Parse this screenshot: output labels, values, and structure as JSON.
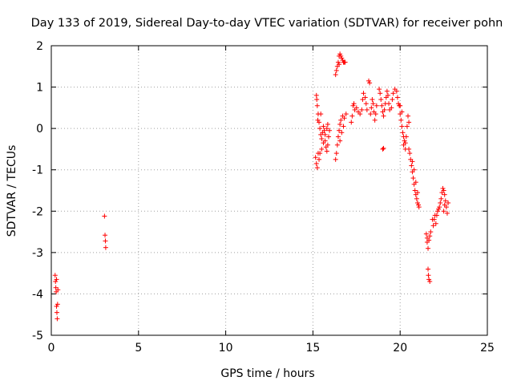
{
  "chart_data": {
    "type": "scatter",
    "title": "Day 133 of 2019, Sidereal Day-to-day VTEC variation (SDTVAR) for receiver pohn",
    "xlabel": "GPS time / hours",
    "ylabel": "SDTVAR / TECUs",
    "xlim": [
      0,
      25
    ],
    "ylim": [
      -5,
      2
    ],
    "x_ticks": [
      0,
      5,
      10,
      15,
      20,
      25
    ],
    "y_ticks": [
      -5,
      -4,
      -3,
      -2,
      -1,
      0,
      1,
      2
    ],
    "x_tick_labels": [
      "0",
      "5",
      "10",
      "15",
      "20",
      "25"
    ],
    "y_tick_labels": [
      "-5",
      "-4",
      "-3",
      "-2",
      "-1",
      "0",
      "1",
      "2"
    ],
    "grid": true,
    "marker": "+",
    "series": [
      {
        "name": "SDTVAR",
        "color": "#ff0000",
        "points": [
          [
            0.22,
            -3.55
          ],
          [
            0.24,
            -3.7
          ],
          [
            0.26,
            -3.85
          ],
          [
            0.28,
            -3.95
          ],
          [
            0.3,
            -4.3
          ],
          [
            0.32,
            -4.45
          ],
          [
            0.34,
            -4.6
          ],
          [
            0.36,
            -4.25
          ],
          [
            0.38,
            -3.9
          ],
          [
            0.3,
            -3.65
          ],
          [
            3.05,
            -2.12
          ],
          [
            3.08,
            -2.58
          ],
          [
            3.1,
            -2.72
          ],
          [
            3.12,
            -2.88
          ],
          [
            15.15,
            -0.7
          ],
          [
            15.2,
            -0.85
          ],
          [
            15.25,
            -0.95
          ],
          [
            15.3,
            -0.6
          ],
          [
            15.2,
            0.8
          ],
          [
            15.22,
            0.7
          ],
          [
            15.25,
            0.55
          ],
          [
            15.3,
            0.35
          ],
          [
            15.35,
            0.15
          ],
          [
            15.4,
            0.0
          ],
          [
            15.45,
            -0.15
          ],
          [
            15.5,
            -0.25
          ],
          [
            15.55,
            -0.1
          ],
          [
            15.6,
            0.05
          ],
          [
            15.65,
            -0.05
          ],
          [
            15.7,
            -0.3
          ],
          [
            15.75,
            -0.45
          ],
          [
            15.8,
            -0.55
          ],
          [
            15.85,
            -0.4
          ],
          [
            15.9,
            -0.2
          ],
          [
            15.95,
            -0.05
          ],
          [
            15.35,
            -0.75
          ],
          [
            15.4,
            -0.6
          ],
          [
            15.5,
            -0.5
          ],
          [
            15.6,
            -0.35
          ],
          [
            15.7,
            -0.15
          ],
          [
            15.8,
            0.0
          ],
          [
            15.85,
            0.1
          ],
          [
            15.28,
            0.2
          ],
          [
            15.45,
            0.35
          ],
          [
            16.3,
            -0.75
          ],
          [
            16.35,
            -0.6
          ],
          [
            16.4,
            -0.4
          ],
          [
            16.45,
            -0.2
          ],
          [
            16.5,
            -0.05
          ],
          [
            16.55,
            0.1
          ],
          [
            16.6,
            0.2
          ],
          [
            16.7,
            0.3
          ],
          [
            16.8,
            0.25
          ],
          [
            16.9,
            0.35
          ],
          [
            16.55,
            -0.3
          ],
          [
            16.65,
            -0.1
          ],
          [
            16.75,
            0.05
          ],
          [
            16.3,
            1.3
          ],
          [
            16.35,
            1.4
          ],
          [
            16.4,
            1.5
          ],
          [
            16.45,
            1.6
          ],
          [
            16.5,
            1.75
          ],
          [
            16.55,
            1.8
          ],
          [
            16.6,
            1.75
          ],
          [
            16.65,
            1.7
          ],
          [
            16.7,
            1.65
          ],
          [
            16.75,
            1.6
          ],
          [
            16.8,
            1.6
          ],
          [
            16.85,
            1.6
          ],
          [
            16.5,
            1.55
          ],
          [
            17.3,
            0.55
          ],
          [
            17.35,
            0.6
          ],
          [
            17.4,
            0.45
          ],
          [
            17.5,
            0.5
          ],
          [
            17.6,
            0.4
          ],
          [
            17.7,
            0.35
          ],
          [
            17.8,
            0.45
          ],
          [
            17.85,
            0.7
          ],
          [
            17.9,
            0.85
          ],
          [
            18.0,
            0.75
          ],
          [
            18.05,
            0.6
          ],
          [
            18.1,
            0.45
          ],
          [
            17.25,
            0.3
          ],
          [
            17.2,
            0.15
          ],
          [
            18.2,
            1.15
          ],
          [
            18.25,
            1.1
          ],
          [
            18.3,
            0.35
          ],
          [
            18.35,
            0.5
          ],
          [
            18.4,
            0.7
          ],
          [
            18.45,
            0.6
          ],
          [
            18.5,
            0.4
          ],
          [
            18.55,
            0.2
          ],
          [
            18.6,
            0.35
          ],
          [
            18.65,
            0.55
          ],
          [
            18.8,
            0.95
          ],
          [
            18.85,
            0.85
          ],
          [
            18.9,
            0.7
          ],
          [
            18.95,
            0.55
          ],
          [
            19.0,
            0.4
          ],
          [
            19.05,
            0.3
          ],
          [
            19.1,
            0.45
          ],
          [
            19.15,
            0.6
          ],
          [
            19.2,
            0.75
          ],
          [
            19.25,
            0.9
          ],
          [
            19.3,
            0.8
          ],
          [
            19.35,
            0.6
          ],
          [
            19.4,
            0.45
          ],
          [
            19.5,
            0.5
          ],
          [
            19.55,
            0.7
          ],
          [
            19.6,
            0.85
          ],
          [
            19.7,
            0.95
          ],
          [
            19.8,
            0.9
          ],
          [
            19.85,
            0.75
          ],
          [
            19.9,
            0.6
          ],
          [
            19.0,
            -0.5
          ],
          [
            19.05,
            -0.48
          ],
          [
            19.95,
            0.55
          ],
          [
            20.0,
            0.35
          ],
          [
            20.05,
            0.2
          ],
          [
            20.1,
            0.05
          ],
          [
            20.15,
            -0.1
          ],
          [
            20.2,
            -0.2
          ],
          [
            20.25,
            -0.3
          ],
          [
            20.3,
            -0.35
          ],
          [
            20.35,
            -0.2
          ],
          [
            20.4,
            0.05
          ],
          [
            20.45,
            0.3
          ],
          [
            20.5,
            0.15
          ],
          [
            20.0,
            0.55
          ],
          [
            20.1,
            0.4
          ],
          [
            20.2,
            -0.4
          ],
          [
            20.3,
            -0.5
          ],
          [
            20.5,
            -0.5
          ],
          [
            20.55,
            -0.6
          ],
          [
            20.6,
            -0.75
          ],
          [
            20.65,
            -0.9
          ],
          [
            20.7,
            -1.05
          ],
          [
            20.75,
            -1.2
          ],
          [
            20.8,
            -1.35
          ],
          [
            20.85,
            -1.5
          ],
          [
            20.9,
            -1.6
          ],
          [
            20.95,
            -1.7
          ],
          [
            21.0,
            -1.8
          ],
          [
            21.05,
            -1.85
          ],
          [
            21.08,
            -1.9
          ],
          [
            20.7,
            -0.8
          ],
          [
            20.8,
            -1.0
          ],
          [
            20.9,
            -1.3
          ],
          [
            21.0,
            -1.55
          ],
          [
            21.5,
            -2.55
          ],
          [
            21.55,
            -2.75
          ],
          [
            21.6,
            -2.9
          ],
          [
            21.65,
            -2.7
          ],
          [
            21.7,
            -2.6
          ],
          [
            21.75,
            -2.5
          ],
          [
            21.6,
            -3.4
          ],
          [
            21.62,
            -3.55
          ],
          [
            21.65,
            -3.65
          ],
          [
            21.7,
            -3.7
          ],
          [
            21.55,
            -2.65
          ],
          [
            21.85,
            -2.2
          ],
          [
            21.9,
            -2.35
          ],
          [
            21.95,
            -2.2
          ],
          [
            22.0,
            -2.1
          ],
          [
            22.05,
            -2.3
          ],
          [
            22.1,
            -2.1
          ],
          [
            22.15,
            -2.0
          ],
          [
            22.2,
            -1.95
          ],
          [
            22.25,
            -1.9
          ],
          [
            22.3,
            -1.8
          ],
          [
            22.35,
            -1.7
          ],
          [
            22.4,
            -1.55
          ],
          [
            22.45,
            -1.45
          ],
          [
            22.5,
            -1.5
          ],
          [
            22.55,
            -1.6
          ],
          [
            22.6,
            -1.75
          ],
          [
            22.65,
            -1.9
          ],
          [
            22.7,
            -2.05
          ],
          [
            22.75,
            -1.8
          ],
          [
            22.5,
            -2.0
          ],
          [
            22.55,
            -1.85
          ]
        ]
      }
    ]
  }
}
